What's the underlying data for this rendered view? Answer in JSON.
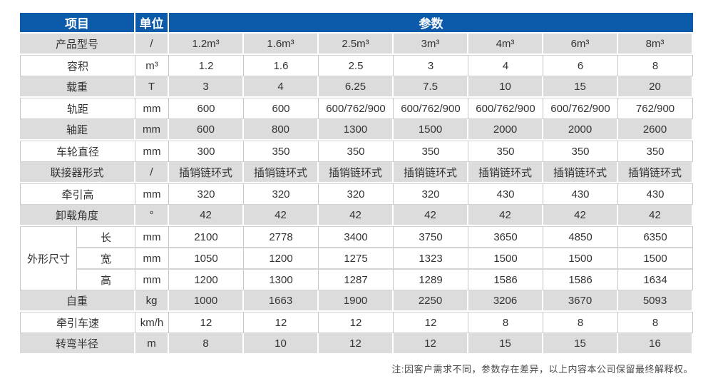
{
  "colors": {
    "header_blue": "#0b5baa",
    "row_gray": "#dcdcdc",
    "border_gray": "#c6c6c6",
    "text": "#333333",
    "note_text": "#4a4a4a",
    "page_bg": "#ffffff"
  },
  "table": {
    "header": {
      "item_label": "项目",
      "unit_label": "单位",
      "params_label": "参数"
    },
    "rows": [
      {
        "label": "产品型号",
        "unit": "/",
        "shade": "gray",
        "values": [
          "1.2m³",
          "1.6m³",
          "2.5m³",
          "3m³",
          "4m³",
          "6m³",
          "8m³"
        ]
      },
      {
        "label": "容积",
        "unit": "m³",
        "shade": "white",
        "values": [
          "1.2",
          "1.6",
          "2.5",
          "3",
          "4",
          "6",
          "8"
        ]
      },
      {
        "label": "载重",
        "unit": "T",
        "shade": "gray",
        "values": [
          "3",
          "4",
          "6.25",
          "7.5",
          "10",
          "15",
          "20"
        ]
      },
      {
        "label": "轨距",
        "unit": "mm",
        "shade": "white",
        "values": [
          "600",
          "600",
          "600/762/900",
          "600/762/900",
          "600/762/900",
          "600/762/900",
          "762/900"
        ]
      },
      {
        "label": "轴距",
        "unit": "mm",
        "shade": "gray",
        "values": [
          "600",
          "800",
          "1300",
          "1500",
          "2000",
          "2000",
          "2600"
        ]
      },
      {
        "label": "车轮直径",
        "unit": "mm",
        "shade": "white",
        "values": [
          "300",
          "350",
          "350",
          "350",
          "350",
          "350",
          "350"
        ]
      },
      {
        "label": "联接器形式",
        "unit": "/",
        "shade": "gray",
        "values": [
          "插销链环式",
          "插销链环式",
          "插销链环式",
          "插销链环式",
          "插销链环式",
          "插销链环式",
          "插销链环式"
        ]
      },
      {
        "label": "牵引高",
        "unit": "mm",
        "shade": "white",
        "values": [
          "320",
          "320",
          "320",
          "320",
          "430",
          "430",
          "430"
        ]
      },
      {
        "label": "卸载角度",
        "unit": "°",
        "shade": "gray",
        "values": [
          "42",
          "42",
          "42",
          "42",
          "42",
          "42",
          "42"
        ]
      },
      {
        "label": "长",
        "unit": "mm",
        "shade": "white",
        "sub": true,
        "group": {
          "label": "外形尺寸",
          "span": 3
        },
        "values": [
          "2100",
          "2778",
          "3400",
          "3750",
          "3650",
          "4850",
          "6350"
        ]
      },
      {
        "label": "宽",
        "unit": "mm",
        "shade": "white",
        "sub": true,
        "values": [
          "1050",
          "1200",
          "1275",
          "1323",
          "1500",
          "1500",
          "1500"
        ]
      },
      {
        "label": "高",
        "unit": "mm",
        "shade": "white",
        "sub": true,
        "values": [
          "1200",
          "1300",
          "1287",
          "1289",
          "1586",
          "1586",
          "1634"
        ]
      },
      {
        "label": "自重",
        "unit": "kg",
        "shade": "gray",
        "values": [
          "1000",
          "1663",
          "1900",
          "2250",
          "3206",
          "3670",
          "5093"
        ]
      },
      {
        "label": "牵引车速",
        "unit": "km/h",
        "shade": "white",
        "values": [
          "12",
          "12",
          "12",
          "12",
          "8",
          "8",
          "8"
        ]
      },
      {
        "label": "转弯半径",
        "unit": "m",
        "shade": "gray",
        "values": [
          "8",
          "10",
          "12",
          "12",
          "15",
          "15",
          "16"
        ]
      }
    ]
  },
  "note": "注:因客户需求不同，参数存在差异，以上内容本公司保留最终解释权。"
}
